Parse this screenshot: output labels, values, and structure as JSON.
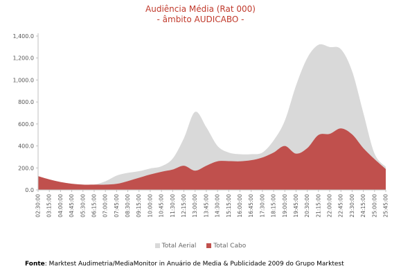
{
  "title_line1": "Audiência Média (Rat 000)",
  "title_line2": "- âmbito AUDICABO -",
  "source_label": "Fonte",
  "source_text": ": Marktest Audimetria/MediaMonitor in Anuário de Media & Publicidade 2009 do Grupo Marktest",
  "colors": {
    "aerial": "#d9d9d9",
    "cabo": "#c0504d",
    "title": "#c0392b"
  },
  "chart_data": {
    "type": "area",
    "title": "Audiência Média (Rat 000)",
    "subtitle": "- âmbito AUDICABO -",
    "xlabel": "",
    "ylabel": "",
    "ylim": [
      0,
      1400
    ],
    "yticks": [
      "0.0",
      "200.0",
      "400.0",
      "600.0",
      "800.0",
      "1,000.0",
      "1,200.0",
      "1,400.0"
    ],
    "stacked": false,
    "grid": false,
    "legend_position": "bottom",
    "x": [
      "02:30:00",
      "03:15:00",
      "04:00:00",
      "04:45:00",
      "05:30:00",
      "06:15:00",
      "07:00:00",
      "07:45:00",
      "08:30:00",
      "09:15:00",
      "10:00:00",
      "10:45:00",
      "11:30:00",
      "12:15:00",
      "13:00:00",
      "13:45:00",
      "14:30:00",
      "15:15:00",
      "16:00:00",
      "16:45:00",
      "17:30:00",
      "18:15:00",
      "19:00:00",
      "19:45:00",
      "20:30:00",
      "21:15:00",
      "22:00:00",
      "22:45:00",
      "23:30:00",
      "24:15:00",
      "25:00:00",
      "25:45:00"
    ],
    "series": [
      {
        "name": "Total Aerial",
        "color": "#d9d9d9",
        "values": [
          125,
          95,
          72,
          56,
          48,
          48,
          78,
          130,
          155,
          170,
          195,
          215,
          285,
          470,
          710,
          570,
          400,
          340,
          325,
          325,
          340,
          450,
          630,
          950,
          1200,
          1320,
          1300,
          1280,
          1080,
          700,
          330,
          210
        ]
      },
      {
        "name": "Total Cabo",
        "color": "#c0504d",
        "values": [
          125,
          95,
          72,
          56,
          48,
          48,
          48,
          55,
          80,
          110,
          140,
          165,
          185,
          220,
          175,
          220,
          260,
          262,
          260,
          270,
          295,
          340,
          400,
          330,
          380,
          500,
          510,
          560,
          505,
          380,
          280,
          190
        ]
      }
    ]
  }
}
